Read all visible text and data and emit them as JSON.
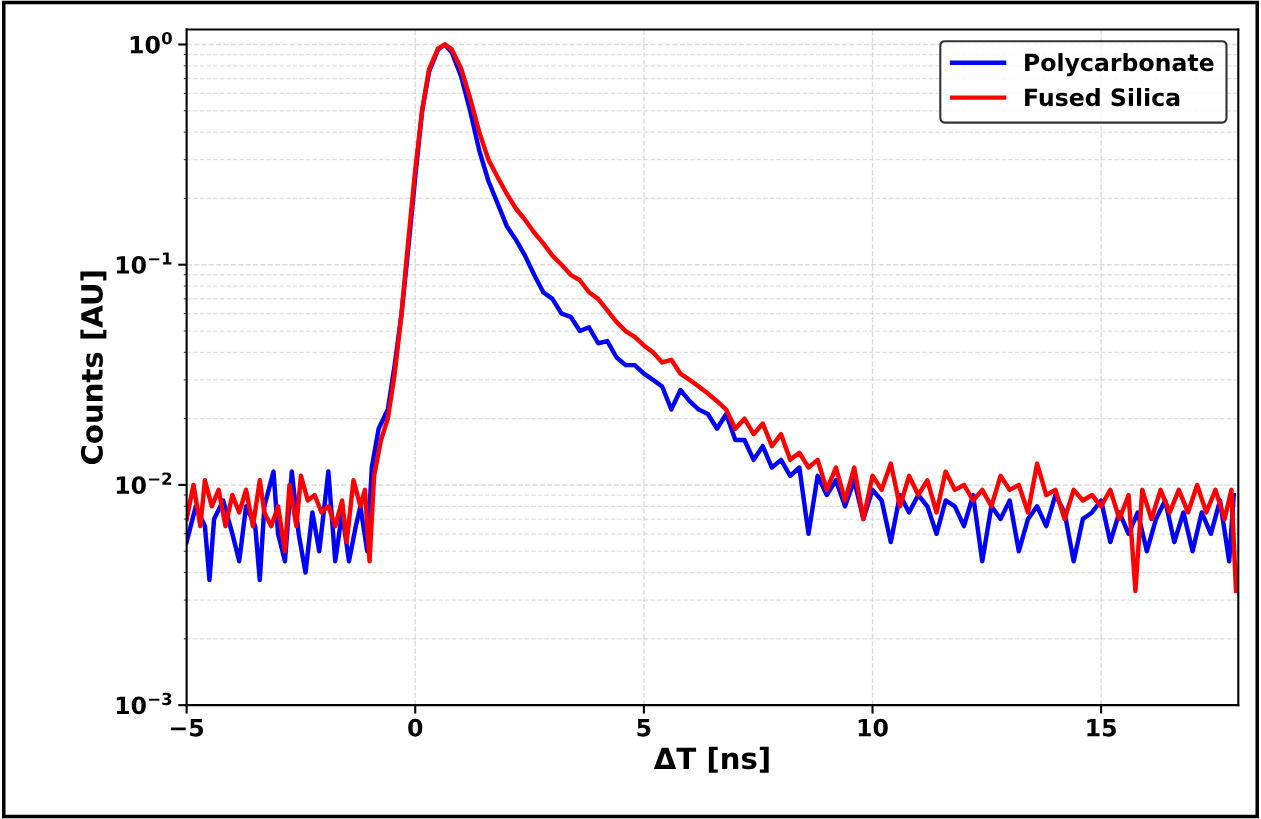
{
  "chart_data": {
    "type": "line",
    "xlabel": "ΔT [ns]",
    "ylabel": "Counts [AU]",
    "log": "y",
    "grid": true,
    "legend": "top right",
    "xlim": [
      -5,
      18
    ],
    "xticks": [
      {
        "value": -5,
        "label": "−5"
      },
      0,
      5,
      10,
      15
    ],
    "ylim": [
      0.001,
      1.17
    ],
    "yticks": [
      {
        "value": 0.001,
        "label": "10$^{−3}$"
      },
      {
        "value": 0.01,
        "label": "10$^{−2}$"
      },
      {
        "value": 0.1,
        "label": "10$^{−1}$"
      },
      {
        "value": 1,
        "label": "10$^{0}$"
      }
    ],
    "series": [
      {
        "name": "Polycarbonate",
        "color": "#0000ff",
        "x": [
          -5.0,
          -4.8,
          -4.6,
          -4.5,
          -4.4,
          -4.2,
          -4.0,
          -3.85,
          -3.7,
          -3.5,
          -3.4,
          -3.3,
          -3.1,
          -3.0,
          -2.85,
          -2.7,
          -2.55,
          -2.4,
          -2.25,
          -2.1,
          -1.9,
          -1.75,
          -1.6,
          -1.45,
          -1.3,
          -1.2,
          -1.05,
          -0.95,
          -0.8,
          -0.6,
          -0.45,
          -0.3,
          -0.15,
          0.0,
          0.15,
          0.3,
          0.5,
          0.65,
          0.8,
          1.0,
          1.2,
          1.4,
          1.6,
          1.8,
          2.0,
          2.2,
          2.4,
          2.6,
          2.8,
          3.0,
          3.2,
          3.4,
          3.6,
          3.8,
          4.0,
          4.2,
          4.4,
          4.6,
          4.8,
          5.0,
          5.2,
          5.4,
          5.6,
          5.8,
          6.0,
          6.2,
          6.4,
          6.6,
          6.8,
          7.0,
          7.2,
          7.4,
          7.6,
          7.8,
          8.0,
          8.2,
          8.4,
          8.6,
          8.8,
          9.0,
          9.2,
          9.4,
          9.6,
          9.8,
          10.0,
          10.2,
          10.4,
          10.6,
          10.8,
          11.0,
          11.2,
          11.4,
          11.6,
          11.8,
          12.0,
          12.2,
          12.4,
          12.6,
          12.8,
          13.0,
          13.2,
          13.4,
          13.6,
          13.8,
          14.0,
          14.2,
          14.4,
          14.6,
          14.8,
          15.0,
          15.2,
          15.4,
          15.6,
          15.8,
          16.0,
          16.2,
          16.4,
          16.6,
          16.8,
          17.0,
          17.2,
          17.4,
          17.6,
          17.8,
          17.9
        ],
        "values": [
          0.0055,
          0.008,
          0.0065,
          0.0037,
          0.007,
          0.0085,
          0.006,
          0.0045,
          0.008,
          0.0065,
          0.0037,
          0.008,
          0.0115,
          0.006,
          0.0045,
          0.0115,
          0.006,
          0.004,
          0.0075,
          0.005,
          0.0115,
          0.0045,
          0.0075,
          0.0045,
          0.0065,
          0.008,
          0.005,
          0.012,
          0.018,
          0.022,
          0.035,
          0.06,
          0.12,
          0.25,
          0.5,
          0.75,
          0.95,
          1.0,
          0.92,
          0.72,
          0.5,
          0.33,
          0.24,
          0.19,
          0.15,
          0.13,
          0.11,
          0.09,
          0.075,
          0.07,
          0.06,
          0.058,
          0.05,
          0.052,
          0.044,
          0.045,
          0.038,
          0.035,
          0.035,
          0.032,
          0.03,
          0.028,
          0.022,
          0.027,
          0.024,
          0.022,
          0.021,
          0.018,
          0.021,
          0.016,
          0.016,
          0.013,
          0.015,
          0.012,
          0.013,
          0.011,
          0.012,
          0.006,
          0.011,
          0.009,
          0.0105,
          0.008,
          0.0105,
          0.007,
          0.0095,
          0.0085,
          0.0055,
          0.009,
          0.0075,
          0.009,
          0.008,
          0.006,
          0.0085,
          0.008,
          0.0065,
          0.009,
          0.0045,
          0.008,
          0.007,
          0.0085,
          0.005,
          0.007,
          0.008,
          0.0065,
          0.009,
          0.0075,
          0.0045,
          0.007,
          0.0075,
          0.0085,
          0.0055,
          0.0075,
          0.006,
          0.0075,
          0.005,
          0.007,
          0.0085,
          0.0055,
          0.0075,
          0.005,
          0.0075,
          0.006,
          0.0085,
          0.0045,
          0.009
        ]
      },
      {
        "name": "Fused Silica",
        "color": "#ff0000",
        "x": [
          -5.0,
          -4.85,
          -4.7,
          -4.6,
          -4.45,
          -4.3,
          -4.15,
          -4.0,
          -3.85,
          -3.7,
          -3.55,
          -3.4,
          -3.3,
          -3.15,
          -3.0,
          -2.85,
          -2.75,
          -2.6,
          -2.5,
          -2.35,
          -2.2,
          -2.05,
          -1.9,
          -1.75,
          -1.6,
          -1.5,
          -1.35,
          -1.2,
          -1.1,
          -1.0,
          -0.9,
          -0.75,
          -0.6,
          -0.45,
          -0.3,
          -0.15,
          0.0,
          0.15,
          0.3,
          0.5,
          0.65,
          0.8,
          1.0,
          1.2,
          1.4,
          1.6,
          1.8,
          2.0,
          2.2,
          2.4,
          2.6,
          2.8,
          3.0,
          3.2,
          3.4,
          3.6,
          3.8,
          4.0,
          4.2,
          4.4,
          4.6,
          4.8,
          5.0,
          5.2,
          5.4,
          5.6,
          5.8,
          6.0,
          6.2,
          6.4,
          6.6,
          6.8,
          7.0,
          7.2,
          7.4,
          7.6,
          7.8,
          8.0,
          8.2,
          8.4,
          8.6,
          8.8,
          9.0,
          9.2,
          9.4,
          9.6,
          9.8,
          10.0,
          10.2,
          10.4,
          10.6,
          10.8,
          11.0,
          11.2,
          11.4,
          11.6,
          11.8,
          12.0,
          12.2,
          12.4,
          12.6,
          12.8,
          13.0,
          13.2,
          13.4,
          13.6,
          13.8,
          14.0,
          14.2,
          14.4,
          14.6,
          14.8,
          15.0,
          15.2,
          15.4,
          15.6,
          15.75,
          15.9,
          16.1,
          16.3,
          16.5,
          16.7,
          16.9,
          17.1,
          17.3,
          17.5,
          17.7,
          17.85,
          17.95
        ],
        "values": [
          0.007,
          0.01,
          0.0065,
          0.0105,
          0.008,
          0.0095,
          0.0065,
          0.009,
          0.0075,
          0.0095,
          0.0065,
          0.0105,
          0.0075,
          0.0065,
          0.008,
          0.005,
          0.01,
          0.0065,
          0.011,
          0.0085,
          0.009,
          0.0075,
          0.008,
          0.0065,
          0.0085,
          0.0055,
          0.0105,
          0.008,
          0.0095,
          0.0045,
          0.011,
          0.016,
          0.02,
          0.032,
          0.06,
          0.13,
          0.27,
          0.5,
          0.77,
          0.96,
          1.0,
          0.95,
          0.78,
          0.57,
          0.4,
          0.3,
          0.25,
          0.21,
          0.18,
          0.16,
          0.14,
          0.125,
          0.11,
          0.1,
          0.09,
          0.085,
          0.075,
          0.07,
          0.062,
          0.055,
          0.05,
          0.047,
          0.043,
          0.04,
          0.036,
          0.037,
          0.032,
          0.03,
          0.028,
          0.026,
          0.024,
          0.022,
          0.018,
          0.02,
          0.017,
          0.019,
          0.015,
          0.017,
          0.013,
          0.014,
          0.012,
          0.013,
          0.0095,
          0.012,
          0.0085,
          0.012,
          0.007,
          0.011,
          0.0095,
          0.0125,
          0.008,
          0.011,
          0.009,
          0.0105,
          0.0075,
          0.0115,
          0.0095,
          0.01,
          0.0085,
          0.0095,
          0.008,
          0.011,
          0.0095,
          0.01,
          0.0075,
          0.0125,
          0.009,
          0.0095,
          0.007,
          0.0095,
          0.0085,
          0.009,
          0.008,
          0.0095,
          0.007,
          0.009,
          0.0033,
          0.0095,
          0.007,
          0.0095,
          0.0075,
          0.0095,
          0.0075,
          0.01,
          0.0075,
          0.0095,
          0.007,
          0.0095,
          0.0033
        ]
      }
    ]
  }
}
